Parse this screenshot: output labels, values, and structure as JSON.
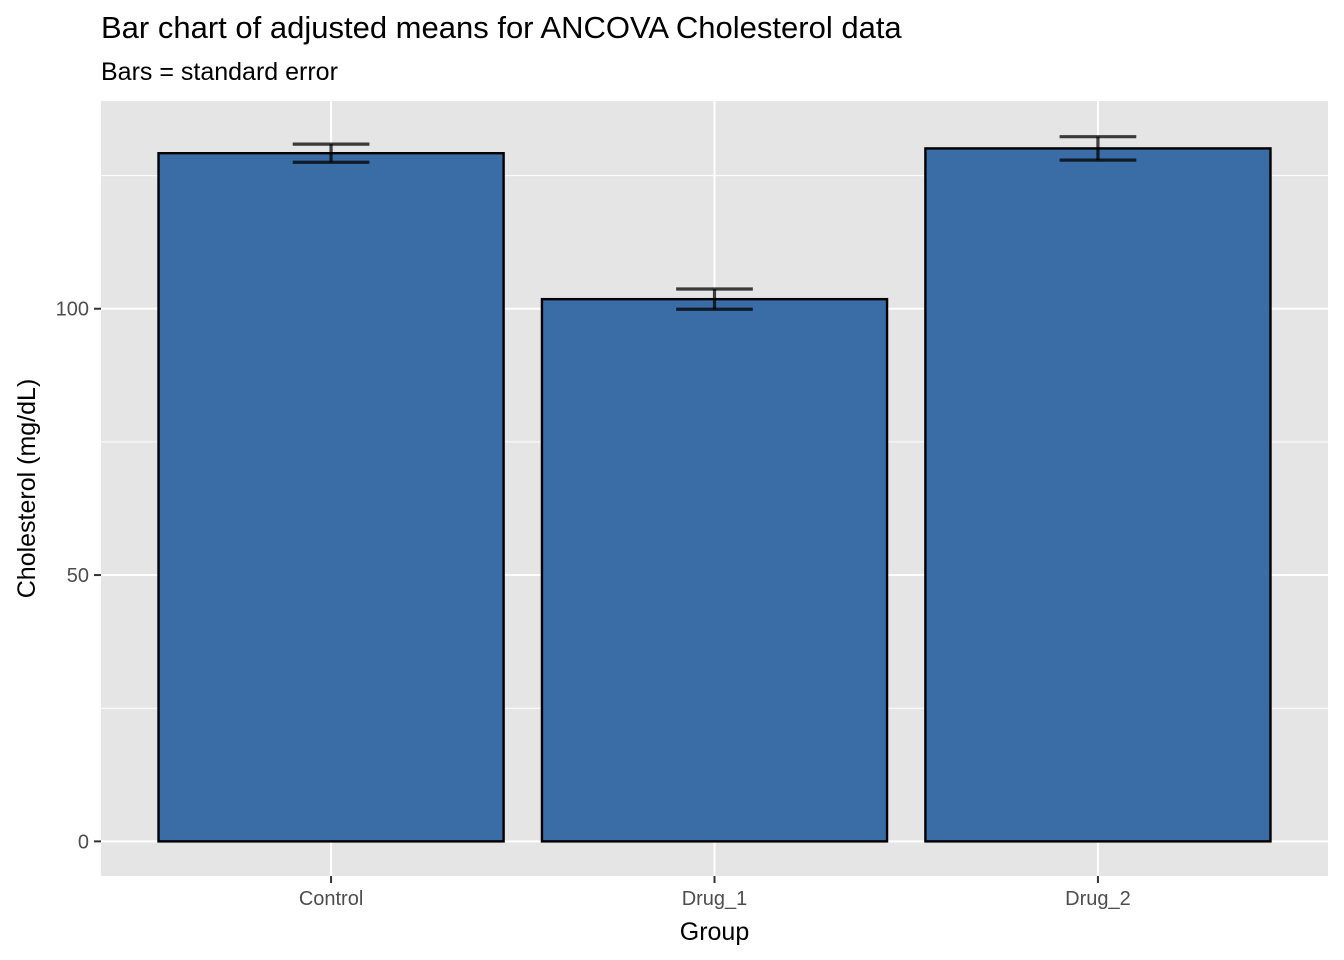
{
  "chart_data": {
    "type": "bar",
    "title": "Bar chart of adjusted means for ANCOVA Cholesterol data",
    "subtitle": "Bars = standard error",
    "xlabel": "Group",
    "ylabel": "Cholesterol (mg/dL)",
    "categories": [
      "Control",
      "Drug_1",
      "Drug_2"
    ],
    "values": [
      129.2,
      101.8,
      130.1
    ],
    "error": [
      1.7,
      1.9,
      2.2
    ],
    "ylim": [
      -6.5,
      139
    ],
    "yticks": [
      0,
      50,
      100
    ],
    "grid": true,
    "bar_color": "#3A6DA5",
    "panel_color": "#E5E5E5"
  }
}
